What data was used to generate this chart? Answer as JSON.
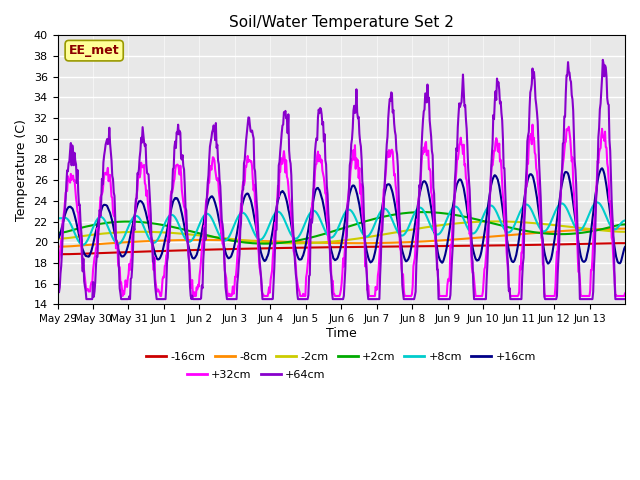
{
  "title": "Soil/Water Temperature Set 2",
  "xlabel": "Time",
  "ylabel": "Temperature (C)",
  "ylim": [
    14,
    40
  ],
  "yticks": [
    14,
    16,
    18,
    20,
    22,
    24,
    26,
    28,
    30,
    32,
    34,
    36,
    38,
    40
  ],
  "x_labels": [
    "May 29",
    "May 30",
    "May 31",
    "Jun 1",
    "Jun 2",
    "Jun 3",
    "Jun 4",
    "Jun 5",
    "Jun 6",
    "Jun 7",
    "Jun 8",
    "Jun 9",
    "Jun 10",
    "Jun 11",
    "Jun 12",
    "Jun 13"
  ],
  "annotation": "EE_met",
  "annotation_color": "#8B0000",
  "annotation_bg": "#FFFF99",
  "series": {
    "-16cm": {
      "color": "#CC0000",
      "lw": 1.5
    },
    "-8cm": {
      "color": "#FF8C00",
      "lw": 1.5
    },
    "-2cm": {
      "color": "#CCCC00",
      "lw": 1.5
    },
    "+2cm": {
      "color": "#00AA00",
      "lw": 1.5
    },
    "+8cm": {
      "color": "#00CCCC",
      "lw": 1.5
    },
    "+16cm": {
      "color": "#000088",
      "lw": 1.5
    },
    "+32cm": {
      "color": "#FF00FF",
      "lw": 1.5
    },
    "+64cm": {
      "color": "#8800CC",
      "lw": 1.5
    }
  },
  "plot_bg_color": "#E8E8E8"
}
